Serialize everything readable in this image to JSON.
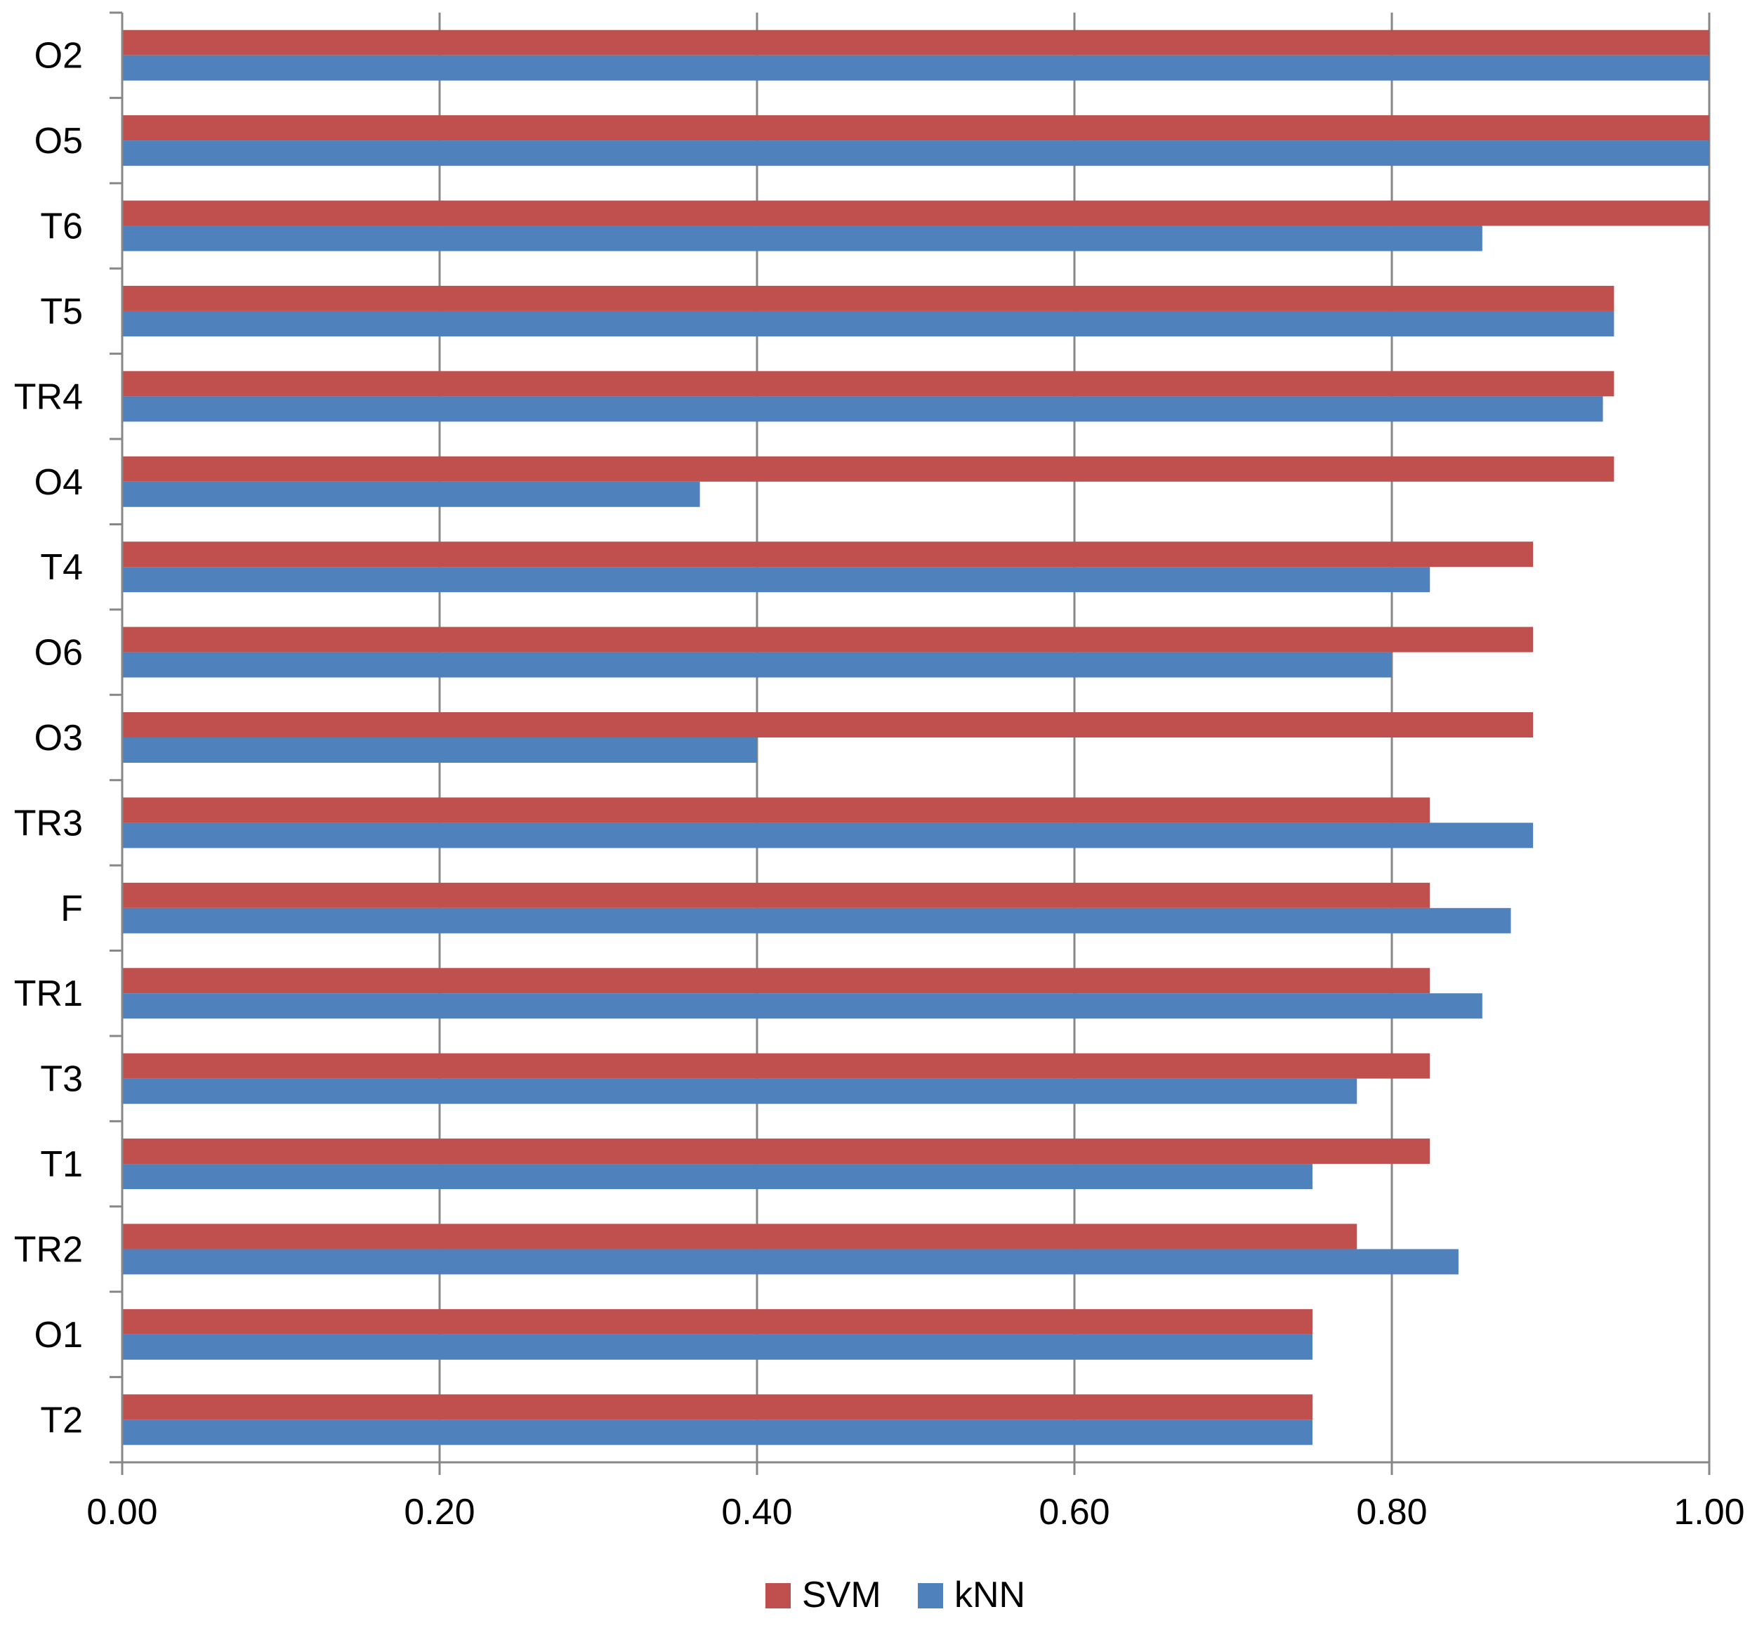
{
  "chart_data": {
    "type": "bar",
    "orientation": "horizontal",
    "title": "",
    "xlabel": "",
    "ylabel": "",
    "xlim": [
      0,
      1
    ],
    "x_ticks": [
      "0.00",
      "0.20",
      "0.40",
      "0.60",
      "0.80",
      "1.00"
    ],
    "x_tick_values": [
      0,
      0.2,
      0.4,
      0.6,
      0.8,
      1.0
    ],
    "grid": true,
    "legend_position": "bottom",
    "categories": [
      "O2",
      "O5",
      "T6",
      "T5",
      "TR4",
      "O4",
      "T4",
      "O6",
      "O3",
      "TR3",
      "F",
      "TR1",
      "T3",
      "T1",
      "TR2",
      "O1",
      "T2"
    ],
    "series": [
      {
        "name": "SVM",
        "color": "#C0504D",
        "values": [
          1.0,
          1.0,
          1.0,
          0.94,
          0.94,
          0.94,
          0.889,
          0.889,
          0.889,
          0.824,
          0.824,
          0.824,
          0.824,
          0.824,
          0.778,
          0.75,
          0.75
        ]
      },
      {
        "name": "kNN",
        "color": "#4F81BD",
        "values": [
          1.0,
          1.0,
          0.857,
          0.94,
          0.933,
          0.364,
          0.824,
          0.8,
          0.4,
          0.889,
          0.875,
          0.857,
          0.778,
          0.75,
          0.842,
          0.75,
          0.75
        ]
      }
    ]
  }
}
